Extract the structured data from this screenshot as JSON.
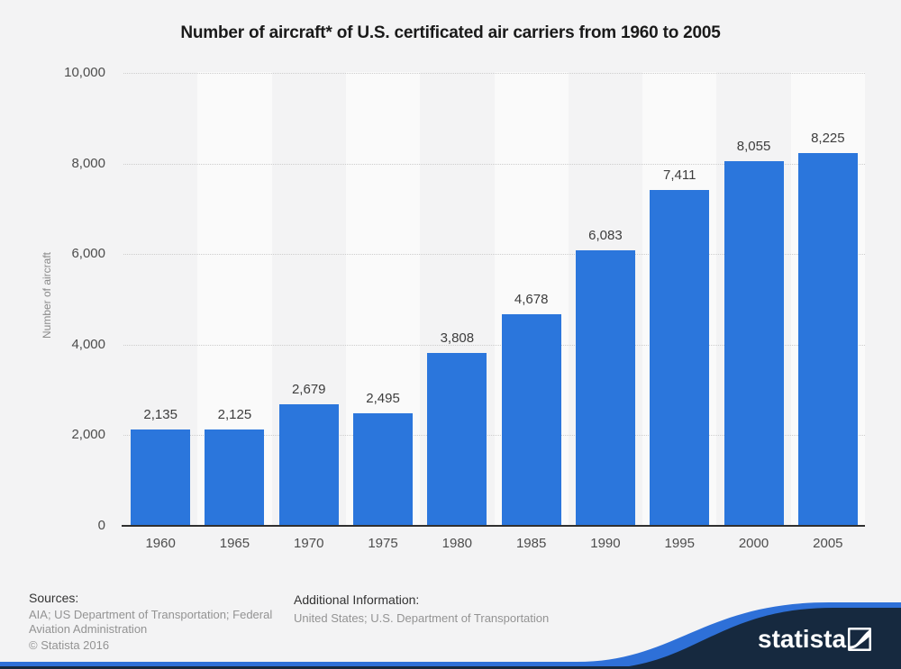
{
  "title": "Number of aircraft* of U.S. certificated air carriers from 1960 to 2005",
  "chart_data": {
    "type": "bar",
    "title": "Number of aircraft* of U.S. certificated air carriers from 1960 to 2005",
    "categories": [
      "1960",
      "1965",
      "1970",
      "1975",
      "1980",
      "1985",
      "1990",
      "1995",
      "2000",
      "2005"
    ],
    "values": [
      2135,
      2125,
      2679,
      2495,
      3808,
      4678,
      6083,
      7411,
      8055,
      8225
    ],
    "value_labels": [
      "2,135",
      "2,125",
      "2,679",
      "2,495",
      "3,808",
      "4,678",
      "6,083",
      "7,411",
      "8,055",
      "8,225"
    ],
    "xlabel": "",
    "ylabel": "Number of aircraft",
    "ylim": [
      0,
      10000
    ],
    "ytick_values": [
      0,
      2000,
      4000,
      6000,
      8000,
      10000
    ],
    "ytick_labels": [
      "0",
      "2,000",
      "4,000",
      "6,000",
      "8,000",
      "10,000"
    ],
    "grid": "horizontal-dotted",
    "legend": "none",
    "band_alternation": "even categories shaded lighter"
  },
  "footer": {
    "sources_label": "Sources:",
    "sources_lines": [
      "AIA; US Department of Transportation; Federal",
      "Aviation Administration"
    ],
    "copyright": "© Statista 2016",
    "additional_label": "Additional Information:",
    "additional_text": "United States; U.S. Department of Transportation"
  },
  "brand": {
    "name": "statista"
  },
  "colors": {
    "page_bg": "#f3f3f4",
    "band_light": "#fafafa",
    "bar": "#2b76dc",
    "gridline": "#cdcdcd",
    "axis": "#303030",
    "navy": "#16293f",
    "blue": "#2e70d8",
    "white": "#ffffff"
  }
}
